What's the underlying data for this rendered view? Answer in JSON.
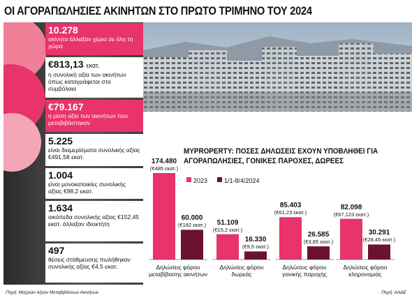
{
  "title": "ΟΙ ΑΓΟΡΑΠΩΛΗΣΙΕΣ ΑΚΙΝΗΤΩΝ ΣΤΟ ΠΡΩΤΟ ΤΡΙΜΗΝΟ ΤΟΥ 2024",
  "stats": [
    {
      "number": "10.278",
      "text": "ακίνητα άλλαξαν χέρια σε όλη τη χώρα",
      "highlight": true
    },
    {
      "number": "€813,13",
      "unit": "εκατ.",
      "text": "η συνολική αξία των ακινήτων όπως καταγράφεται στα συμβόλαια",
      "highlight": false
    },
    {
      "number": "€79.167",
      "text": "η μέση αξία των ακινήτων που μεταβιβάστηκαν",
      "highlight": true
    },
    {
      "number": "5.225",
      "text": "είναι διαμερίσματα συνολικής αξίας €491,58 εκατ.",
      "highlight": false
    },
    {
      "number": "1.004",
      "text": "είναι μονοκατοικίες συνολικής αξίας €98,2 εκατ.",
      "highlight": false
    },
    {
      "number": "1.634",
      "text": "οικόπεδα συνολικής αξίας €152,45 εκατ. άλλαξαν ιδιοκτήτη",
      "highlight": false
    },
    {
      "number": "497",
      "text": "θέσεις στάθμευσης πωλήθηκαν συνολικής αξίας €4,5 εκατ.",
      "highlight": false
    }
  ],
  "source_left": "Πηγή: Μητρώο Αξιών Μεταβιβάσεων Ακινήτων",
  "source_right": "Πηγή: ΑΑΔΕ",
  "chart_data": {
    "type": "bar",
    "title": "MYPROPERTY: ΠΟΣΕΣ ΔΗΛΩΣΕΙΣ ΕΧΟΥΝ ΥΠΟΒΛΗΘΕΙ ΓΙΑ ΑΓΟΡΑΠΩΛΗΣΙΕΣ, ΓΟΝΙΚΕΣ ΠΑΡΟΧΕΣ, ΔΩΡΕΕΣ",
    "categories": [
      "Δηλώσεις φόρου μεταβίβασης ακινήτων",
      "Δηλώσεις φόρου δωρεάς",
      "Δηλώσεις φόρου γονικής παροχής",
      "Δηλώσεις φόρου κληρονομιάς"
    ],
    "series": [
      {
        "name": "2023",
        "color": "#e8336b",
        "values": [
          174480,
          51109,
          85403,
          82098
        ],
        "value_labels": [
          "174.480",
          "51.109",
          "85.403",
          "82.098"
        ],
        "amount_labels": [
          "(€485 εκατ.)",
          "(€15,2 εκατ.)",
          "(€61,23 εκατ.)",
          "(€67,123 εκατ.)"
        ]
      },
      {
        "name": "1/1-8/4/2024",
        "color": "#6b1230",
        "values": [
          60000,
          16330,
          26585,
          30291
        ],
        "value_labels": [
          "60.000",
          "16.330",
          "26.585",
          "30.291"
        ],
        "amount_labels": [
          "(€182 εκατ.)",
          "(€9,5 εκατ.)",
          "(€3,85 εκατ.)",
          "(€28,45 εκατ.)"
        ]
      }
    ]
  }
}
